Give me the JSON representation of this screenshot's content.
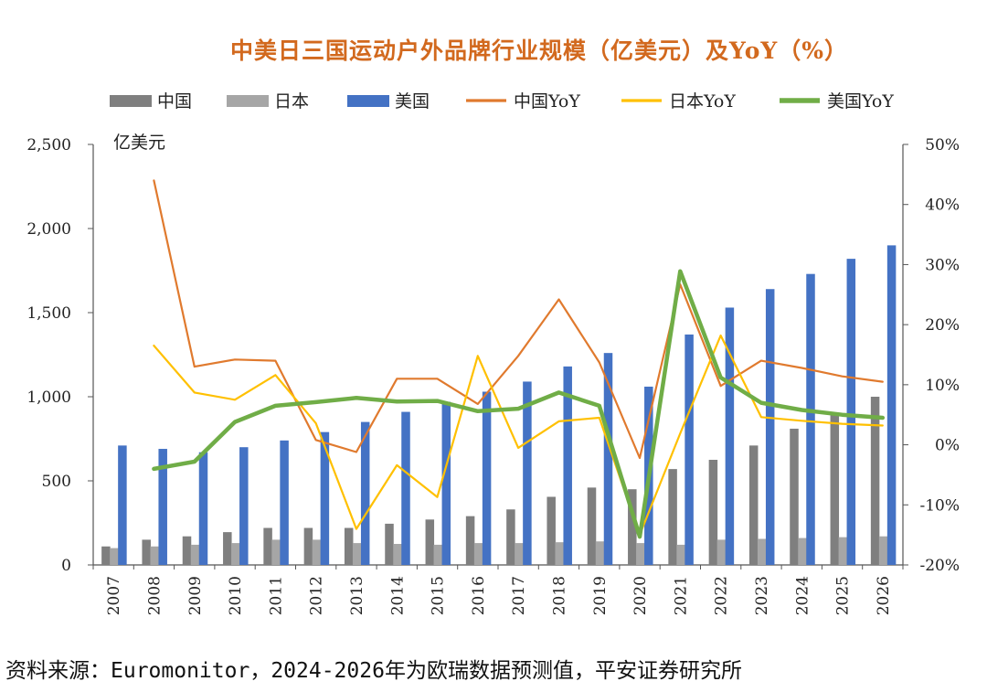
{
  "chart_data": {
    "type": "bar+line",
    "title": "中美日三国运动户外品牌行业规模（亿美元）及YoY（%）",
    "y_unit_label": "亿美元",
    "categories": [
      "2007",
      "2008",
      "2009",
      "2010",
      "2011",
      "2012",
      "2013",
      "2014",
      "2015",
      "2016",
      "2017",
      "2018",
      "2019",
      "2020",
      "2021",
      "2022",
      "2023",
      "2024",
      "2025",
      "2026"
    ],
    "ylim_left": [
      0,
      2500
    ],
    "yticks_left": [
      "0",
      "500",
      "1,000",
      "1,500",
      "2,000",
      "2,500"
    ],
    "ylim_right": [
      -20,
      50
    ],
    "yticks_right": [
      "-20%",
      "-10%",
      "0%",
      "10%",
      "20%",
      "30%",
      "40%",
      "50%"
    ],
    "bar_series": [
      {
        "name": "中国",
        "color": "#7f7f7f",
        "values": [
          110,
          150,
          170,
          195,
          220,
          220,
          220,
          245,
          270,
          290,
          330,
          405,
          460,
          450,
          570,
          625,
          710,
          810,
          900,
          1000
        ]
      },
      {
        "name": "日本",
        "color": "#a6a6a6",
        "values": [
          100,
          110,
          120,
          130,
          150,
          150,
          130,
          125,
          120,
          130,
          130,
          135,
          140,
          130,
          120,
          150,
          155,
          160,
          165,
          170
        ]
      },
      {
        "name": "美国",
        "color": "#4472c4",
        "values": [
          710,
          690,
          670,
          700,
          740,
          790,
          850,
          910,
          970,
          1030,
          1090,
          1180,
          1260,
          1060,
          1370,
          1530,
          1640,
          1730,
          1820,
          1900
        ]
      }
    ],
    "line_series": [
      {
        "name": "中国YoY",
        "color": "#e07a2e",
        "values": [
          null,
          44,
          13,
          14.2,
          14,
          0.8,
          -1.2,
          11,
          11,
          6.8,
          14.8,
          24.2,
          13.7,
          -2.2,
          26.7,
          9.8,
          14.0,
          12.8,
          11.4,
          10.5
        ]
      },
      {
        "name": "日本YoY",
        "color": "#ffc000",
        "values": [
          null,
          16.5,
          8.7,
          7.5,
          11.6,
          3.6,
          -14,
          -3.4,
          -8.7,
          14.8,
          -0.5,
          3.9,
          4.5,
          -15,
          1.9,
          18.2,
          4.6,
          4,
          3.5,
          3.2
        ]
      },
      {
        "name": "美国YoY",
        "color": "#70ad47",
        "values": [
          null,
          -4,
          -2.8,
          3.8,
          6.5,
          7.1,
          7.8,
          7.2,
          7.3,
          5.6,
          6,
          8.7,
          6.5,
          -15.3,
          28.9,
          11.2,
          7,
          5.8,
          5,
          4.5
        ]
      }
    ],
    "legend_position": "top"
  },
  "source_text": "资料来源：Euromonitor，2024-2026年为欧瑞数据预测值，平安证券研究所"
}
